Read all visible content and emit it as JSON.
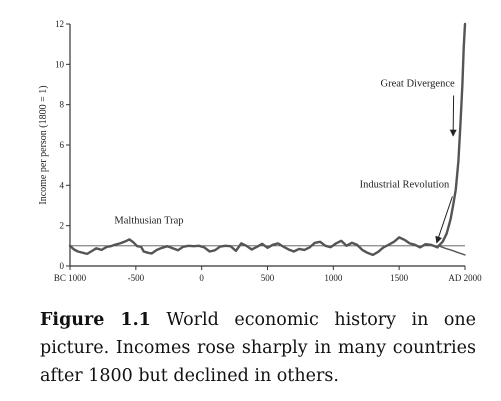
{
  "chart_data": {
    "type": "line",
    "title": "",
    "xlabel": "",
    "ylabel": "Income per person (1800 = 1)",
    "xlim": [
      -1000,
      2000
    ],
    "ylim": [
      0,
      12
    ],
    "x_ticks": [
      -1000,
      -500,
      0,
      500,
      1000,
      1500,
      2000
    ],
    "x_tick_labels": [
      "BC 1000",
      "-500",
      "0",
      "500",
      "1000",
      "1500",
      "AD 2000"
    ],
    "y_ticks": [
      0,
      2,
      4,
      6,
      8,
      10,
      12
    ],
    "y_tick_labels": [
      "0",
      "2",
      "4",
      "6",
      "8",
      "10",
      "12"
    ],
    "grid": false,
    "reference_line": {
      "y": 1
    },
    "series": [
      {
        "style": "thick",
        "x": [
          -1000,
          -970,
          -940,
          -900,
          -870,
          -840,
          -800,
          -760,
          -720,
          -690,
          -660,
          -620,
          -580,
          -550,
          -520,
          -490,
          -460,
          -440,
          -410,
          -380,
          -340,
          -300,
          -260,
          -220,
          -180,
          -140,
          -100,
          -60,
          -20,
          20,
          60,
          100,
          140,
          180,
          220,
          260,
          300,
          340,
          380,
          420,
          460,
          500,
          540,
          580,
          620,
          660,
          700,
          740,
          780,
          820,
          860,
          900,
          940,
          980,
          1020,
          1060,
          1100,
          1140,
          1180,
          1220,
          1260,
          1300,
          1340,
          1380,
          1420,
          1460,
          1500,
          1540,
          1580,
          1620,
          1660,
          1700,
          1740,
          1770,
          1790,
          1800
        ],
        "y": [
          1.0,
          0.82,
          0.72,
          0.65,
          0.6,
          0.72,
          0.88,
          0.8,
          0.95,
          0.98,
          1.05,
          1.12,
          1.22,
          1.32,
          1.18,
          0.98,
          0.95,
          0.72,
          0.66,
          0.62,
          0.8,
          0.9,
          0.98,
          0.88,
          0.78,
          0.95,
          1.0,
          0.98,
          1.0,
          0.92,
          0.72,
          0.78,
          0.96,
          1.0,
          0.98,
          0.75,
          1.12,
          1.0,
          0.82,
          0.95,
          1.1,
          0.9,
          1.05,
          1.12,
          0.96,
          0.82,
          0.72,
          0.85,
          0.8,
          0.92,
          1.15,
          1.2,
          1.0,
          0.93,
          1.12,
          1.25,
          1.0,
          1.15,
          1.05,
          0.8,
          0.65,
          0.55,
          0.7,
          0.92,
          1.05,
          1.2,
          1.42,
          1.3,
          1.12,
          1.05,
          0.92,
          1.08,
          1.05,
          0.98,
          0.92,
          1.0
        ]
      },
      {
        "style": "thick",
        "x": [
          1800,
          1830,
          1860,
          1890,
          1910,
          1930,
          1950,
          1965,
          1980,
          1990,
          2000
        ],
        "y": [
          1.0,
          1.2,
          1.6,
          2.3,
          3.0,
          3.8,
          5.2,
          7.0,
          9.0,
          10.8,
          12.0
        ]
      },
      {
        "style": "thin",
        "x": [
          1800,
          1850,
          1900,
          1950,
          2000
        ],
        "y": [
          1.0,
          0.88,
          0.78,
          0.66,
          0.55
        ]
      }
    ],
    "annotations": [
      {
        "text": "Malthusian Trap",
        "x": -400,
        "y": 2.1
      },
      {
        "text": "Industrial Revolution",
        "x": 1540,
        "y": 3.9,
        "arrow_to": {
          "x": 1800,
          "y": 1.0
        }
      },
      {
        "text": "Great Divergence",
        "x": 1640,
        "y": 8.9,
        "arrow_to": {
          "x": 1925,
          "y": 6.3
        }
      }
    ]
  },
  "caption": {
    "lead": "Figure 1.1",
    "text": " World economic history in one picture. Incomes rose sharply in many countries after 1800 but declined in others."
  }
}
